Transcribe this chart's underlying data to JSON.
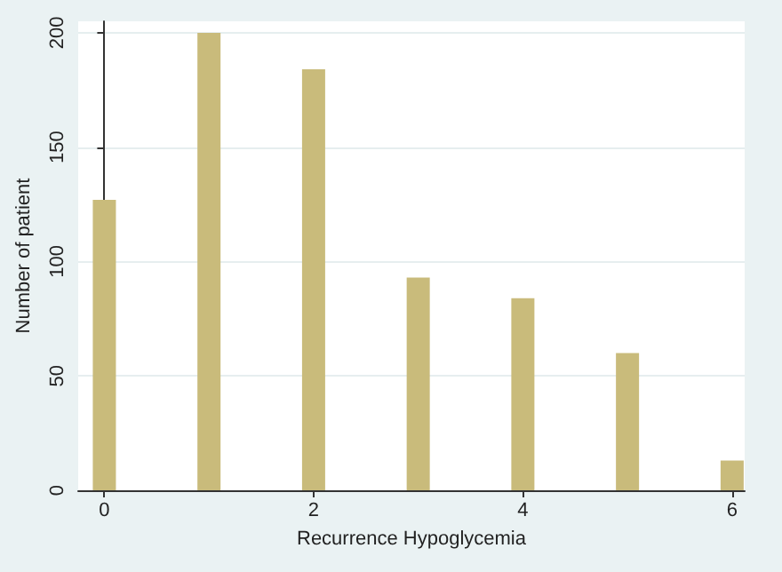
{
  "chart_data": {
    "type": "bar",
    "xlabel": "Recurrence Hypoglycemia",
    "ylabel": "Number of patient",
    "x": [
      0,
      1,
      2,
      3,
      4,
      5,
      6
    ],
    "values": [
      127,
      200,
      184,
      93,
      84,
      60,
      13
    ],
    "color": "#c9bb7b",
    "xlim": [
      -0.25,
      6.12
    ],
    "xticks": [
      0,
      2,
      4,
      6
    ],
    "ylim": [
      0,
      205
    ],
    "yticks": [
      0,
      50,
      100,
      150,
      200
    ],
    "grid": "y"
  }
}
